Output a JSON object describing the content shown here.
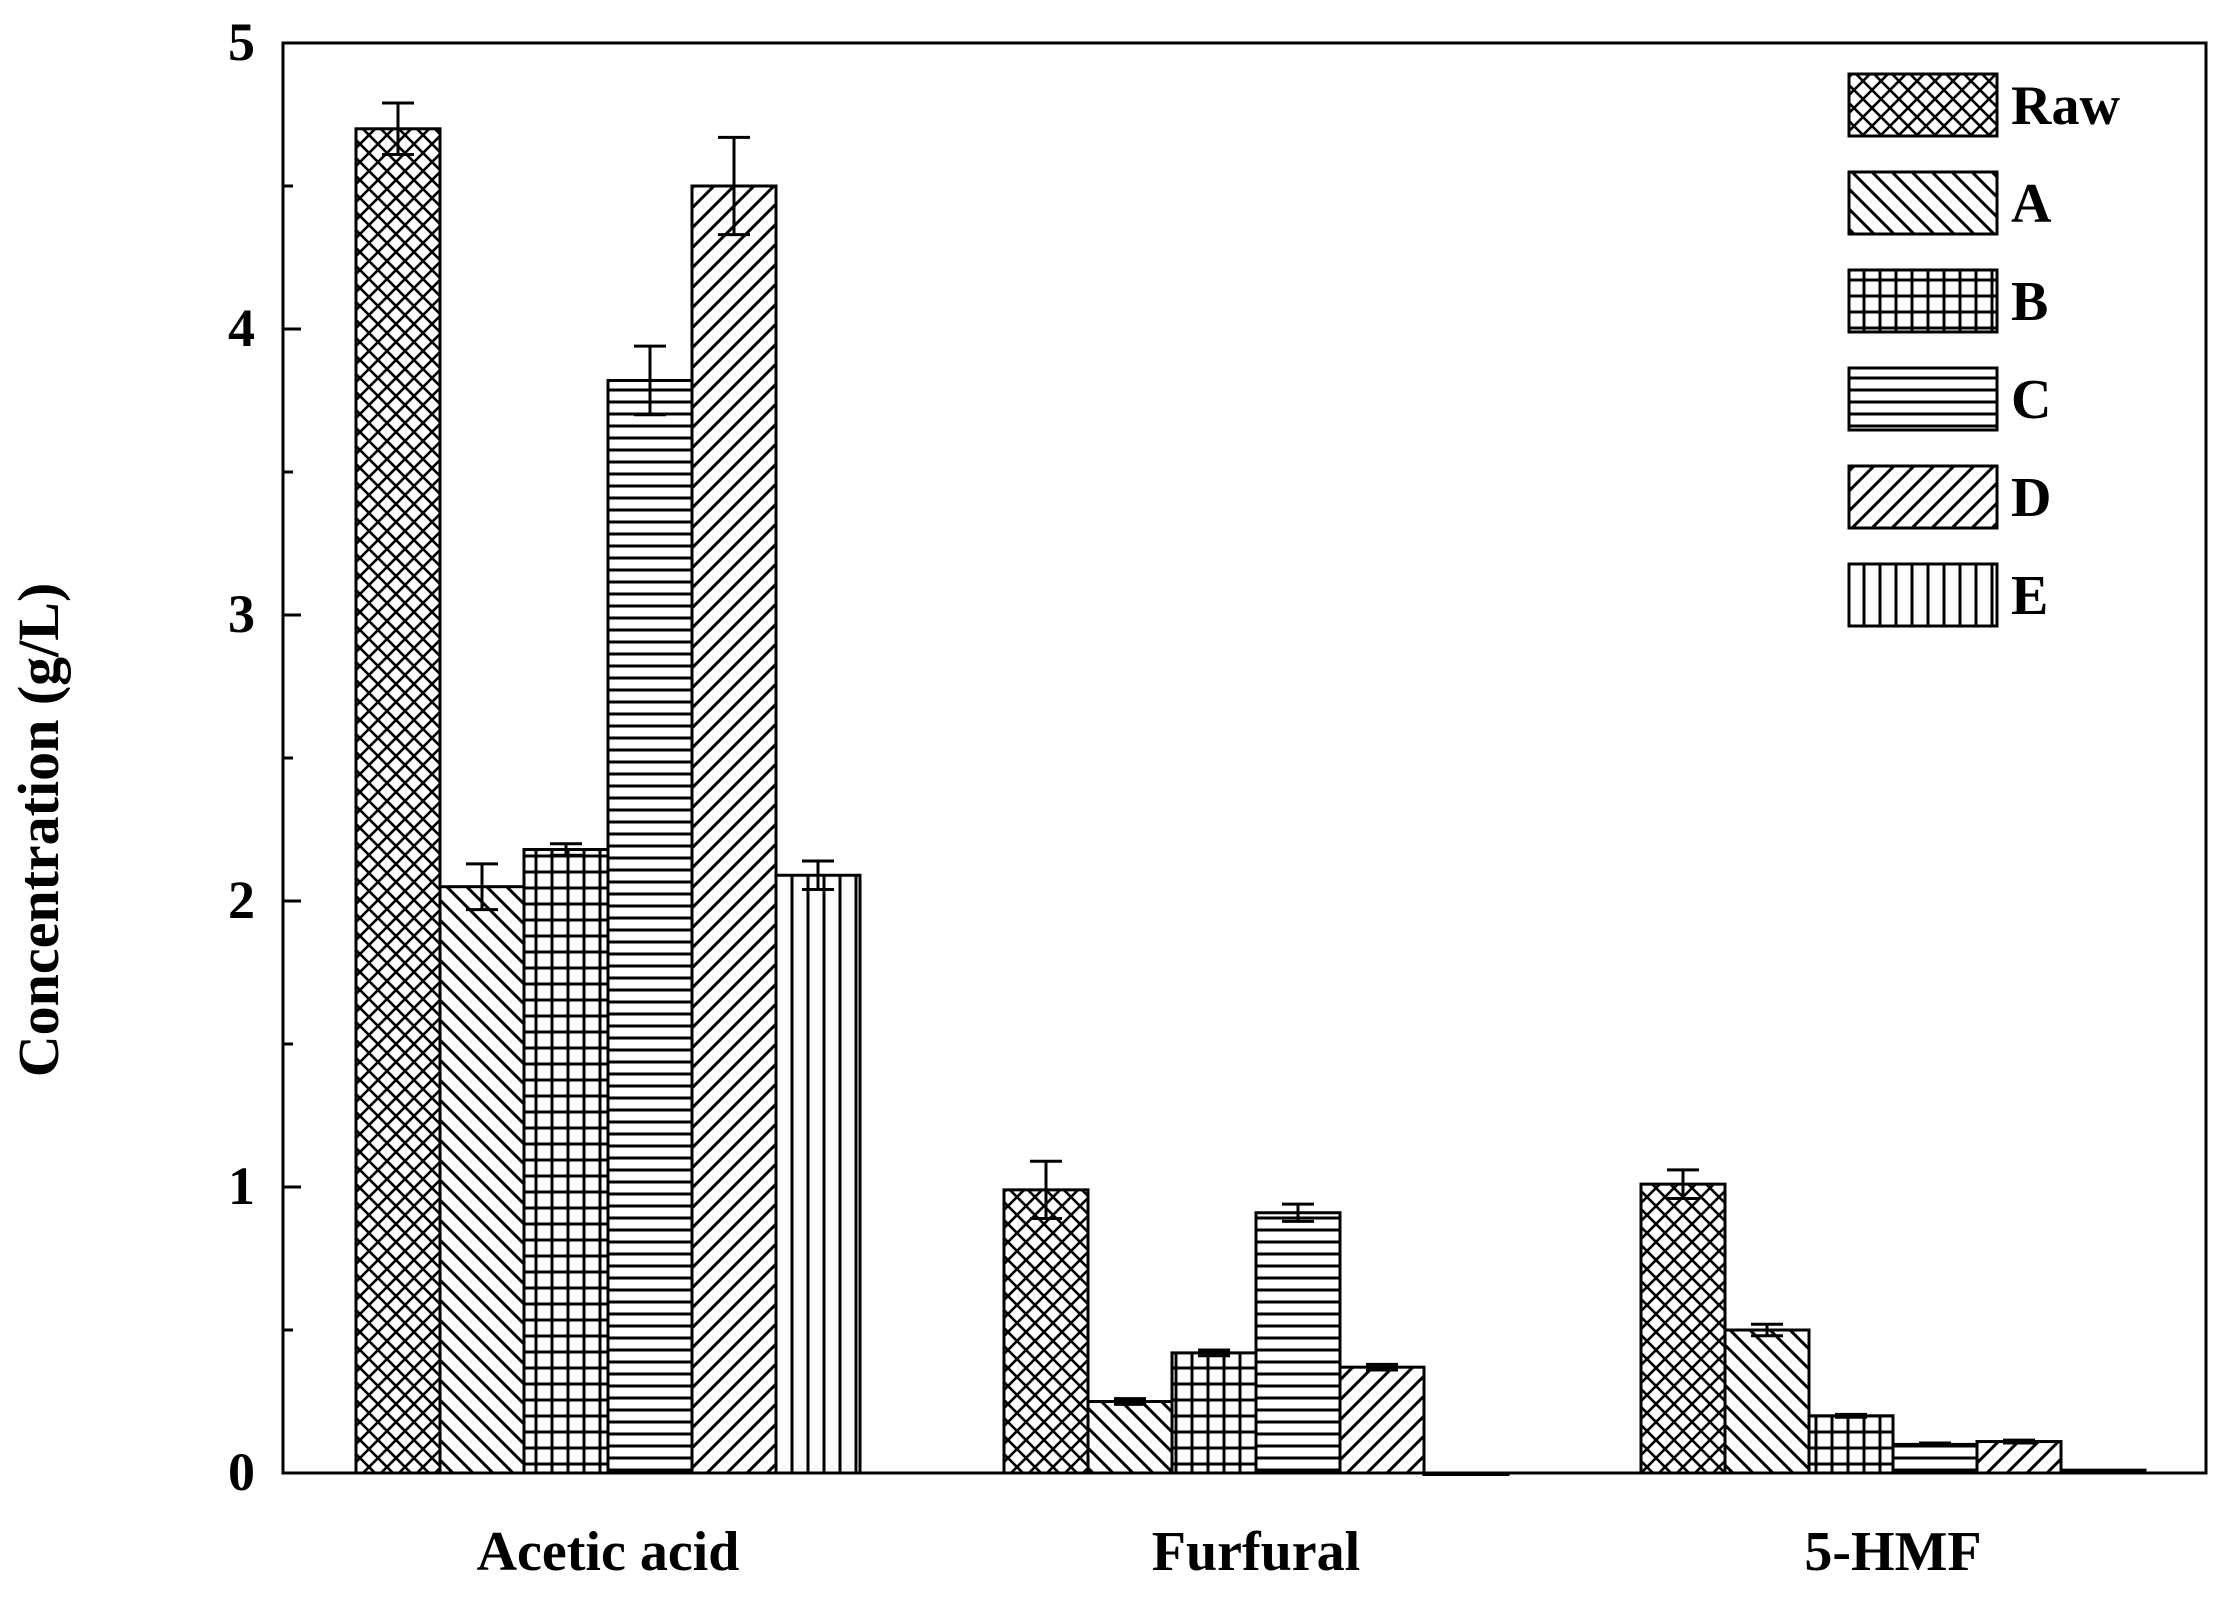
{
  "chart_data": {
    "type": "bar",
    "title": "",
    "xlabel": "",
    "ylabel": "Concentration (g/L)",
    "ylim": [
      0,
      5
    ],
    "yticks": [
      0,
      1,
      2,
      3,
      4,
      5
    ],
    "categories": [
      "Acetic acid",
      "Furfural",
      "5-HMF"
    ],
    "legend_position": "top-right",
    "grid": false,
    "series": [
      {
        "name": "Raw",
        "pattern": "crosshatch",
        "values": [
          4.7,
          0.99,
          1.01
        ],
        "errors": [
          0.09,
          0.1,
          0.05
        ]
      },
      {
        "name": "A",
        "pattern": "backslash",
        "values": [
          2.05,
          0.25,
          0.5
        ],
        "errors": [
          0.08,
          0.01,
          0.02
        ]
      },
      {
        "name": "B",
        "pattern": "grid",
        "values": [
          2.18,
          0.42,
          0.2
        ],
        "errors": [
          0.02,
          0.01,
          0.005
        ]
      },
      {
        "name": "C",
        "pattern": "horizontal",
        "values": [
          3.82,
          0.91,
          0.1
        ],
        "errors": [
          0.12,
          0.03,
          0.005
        ]
      },
      {
        "name": "D",
        "pattern": "slash",
        "values": [
          4.5,
          0.37,
          0.11
        ],
        "errors": [
          0.17,
          0.01,
          0.005
        ]
      },
      {
        "name": "E",
        "pattern": "vertical",
        "values": [
          2.09,
          0.0,
          0.01
        ],
        "errors": [
          0.05,
          0.0,
          0.0
        ]
      }
    ]
  }
}
